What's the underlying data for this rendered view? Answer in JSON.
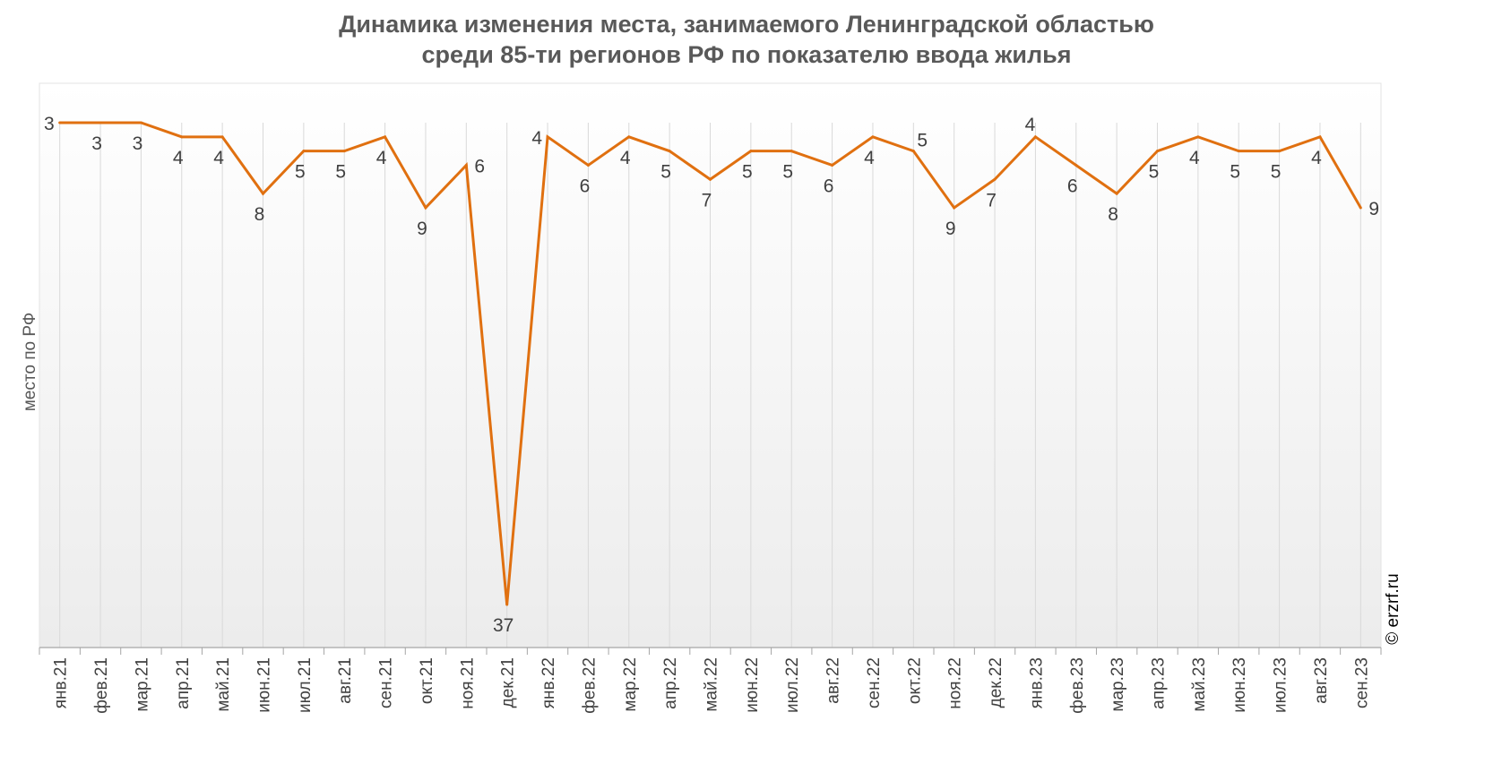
{
  "chart_data": {
    "type": "line",
    "title_lines": [
      "Динамика изменения места, занимаемого Ленинградской областью",
      "среди 85-ти регионов РФ по показателю ввода жилья"
    ],
    "ylabel": "место по РФ",
    "xlabel": "",
    "y_axis_inverted": true,
    "ylim": [
      3,
      37
    ],
    "grid": "vertical",
    "categories": [
      "янв.21",
      "фев.21",
      "мар.21",
      "апр.21",
      "май.21",
      "июн.21",
      "июл.21",
      "авг.21",
      "сен.21",
      "окт.21",
      "ноя.21",
      "дек.21",
      "янв.22",
      "фев.22",
      "мар.22",
      "апр.22",
      "май.22",
      "июн.22",
      "июл.22",
      "авг.22",
      "сен.22",
      "окт.22",
      "ноя.22",
      "дек.22",
      "янв.23",
      "фев.23",
      "мар.23",
      "апр.23",
      "май.23",
      "июн.23",
      "июл.23",
      "авг.23",
      "сен.23"
    ],
    "series": [
      {
        "values": [
          3,
          3,
          3,
          4,
          4,
          8,
          5,
          5,
          4,
          9,
          6,
          37,
          4,
          6,
          4,
          5,
          7,
          5,
          5,
          6,
          4,
          5,
          9,
          7,
          4,
          6,
          8,
          5,
          4,
          5,
          5,
          4,
          9
        ],
        "label_positions": [
          "left",
          "below",
          "below",
          "below",
          "below",
          "below",
          "below",
          "below",
          "below",
          "below",
          "right",
          "below",
          "left",
          "below",
          "below",
          "below",
          "below",
          "below",
          "below",
          "below",
          "below",
          "above-right",
          "below",
          "below",
          "above",
          "below",
          "below",
          "below",
          "below",
          "below",
          "below",
          "below",
          "right"
        ]
      }
    ],
    "colors": {
      "line": "#E07010",
      "grid": "#d9d9d9",
      "title": "#595959"
    }
  },
  "copyright": "© erzrf.ru"
}
